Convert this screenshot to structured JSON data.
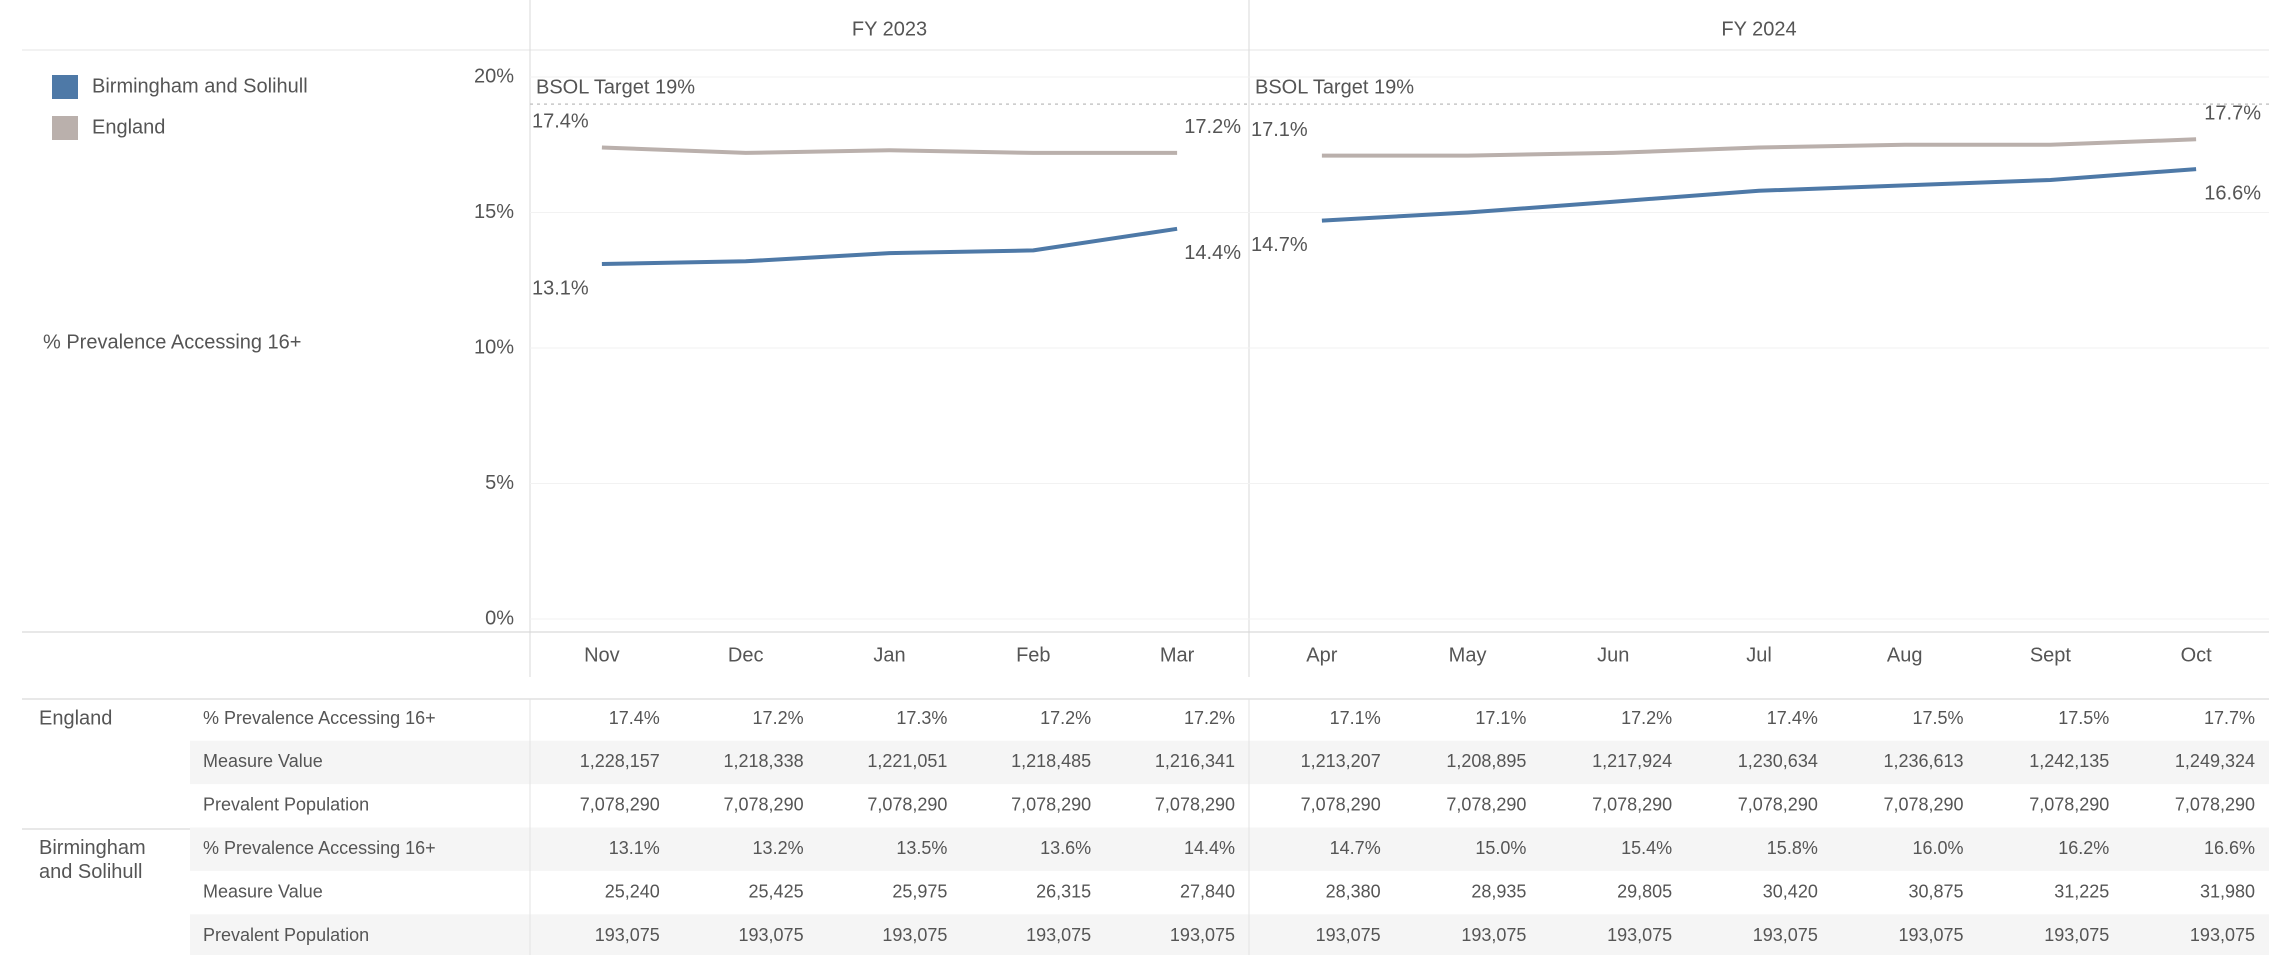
{
  "chart_data": {
    "type": "line",
    "y_label": "% Prevalence Accessing 16+",
    "panes": [
      {
        "label": "FY 2023",
        "categories": [
          "Nov",
          "Dec",
          "Jan",
          "Feb",
          "Mar"
        ]
      },
      {
        "label": "FY 2024",
        "categories": [
          "Apr",
          "May",
          "Jun",
          "Jul",
          "Aug",
          "Sept",
          "Oct"
        ]
      }
    ],
    "series": [
      {
        "name": "Birmingham and Solihull",
        "color": "#4e79a7",
        "values": [
          13.1,
          13.2,
          13.5,
          13.6,
          14.4,
          14.7,
          15.0,
          15.4,
          15.8,
          16.0,
          16.2,
          16.6
        ],
        "value_labels": [
          "13.1%",
          "13.2%",
          "13.5%",
          "13.6%",
          "14.4%",
          "14.7%",
          "15.0%",
          "15.4%",
          "15.8%",
          "16.0%",
          "16.2%",
          "16.6%"
        ]
      },
      {
        "name": "England",
        "color": "#bab0ac",
        "values": [
          17.4,
          17.2,
          17.3,
          17.2,
          17.2,
          17.1,
          17.1,
          17.2,
          17.4,
          17.5,
          17.5,
          17.7
        ],
        "value_labels": [
          "17.4%",
          "17.2%",
          "17.3%",
          "17.2%",
          "17.2%",
          "17.1%",
          "17.1%",
          "17.2%",
          "17.4%",
          "17.5%",
          "17.5%",
          "17.7%"
        ]
      }
    ],
    "reference_line": {
      "value": 19,
      "label": "BSOL Target 19%"
    },
    "ylim": [
      0,
      20
    ],
    "yticks": [
      {
        "value": 0,
        "label": "0%"
      },
      {
        "value": 5,
        "label": "5%"
      },
      {
        "value": 10,
        "label": "10%"
      },
      {
        "value": 15,
        "label": "15%"
      },
      {
        "value": 20,
        "label": "20%"
      }
    ],
    "grid": true,
    "legend": "top-left"
  },
  "table": {
    "row_labels": [
      "Measure Value",
      "Prevalent Population"
    ],
    "rows": [
      [
        "1,228,157",
        "1,218,338",
        "1,221,051",
        "1,218,485",
        "1,216,341",
        "1,213,207",
        "1,208,895",
        "1,217,924",
        "1,230,634",
        "1,236,613",
        "1,242,135",
        "1,249,324"
      ],
      [
        "7,078,290",
        "7,078,290",
        "7,078,290",
        "7,078,290",
        "7,078,290",
        "7,078,290",
        "7,078,290",
        "7,078,290",
        "7,078,290",
        "7,078,290",
        "7,078,290",
        "7,078,290"
      ],
      [
        "25,240",
        "25,425",
        "25,975",
        "26,315",
        "27,840",
        "28,380",
        "28,935",
        "29,805",
        "30,420",
        "30,875",
        "31,225",
        "31,980"
      ],
      [
        "193,075",
        "193,075",
        "193,075",
        "193,075",
        "193,075",
        "193,075",
        "193,075",
        "193,075",
        "193,075",
        "193,075",
        "193,075",
        "193,075"
      ]
    ]
  }
}
